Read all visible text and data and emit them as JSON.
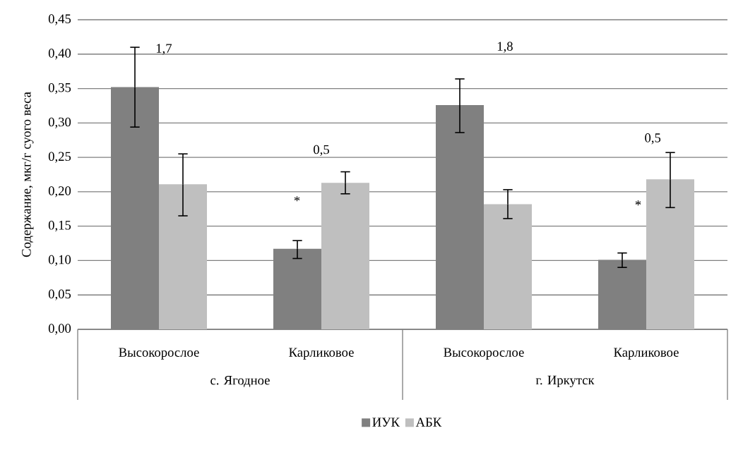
{
  "chart_data": {
    "type": "bar",
    "ylabel": "Содержание, мкг/г суого  веса",
    "categories": [
      "Высокорослое",
      "Карликовое",
      "Высокорослое",
      "Карликовое"
    ],
    "series": [
      {
        "name": "ИУК",
        "color": "#808080",
        "values": [
          0.352,
          0.117,
          0.326,
          0.101
        ],
        "errors": [
          [
            0.294,
            0.41
          ],
          [
            0.103,
            0.129
          ],
          [
            0.286,
            0.364
          ],
          [
            0.09,
            0.111
          ]
        ]
      },
      {
        "name": "АБК",
        "color": "#bfbfbf",
        "values": [
          0.211,
          0.213,
          0.182,
          0.218
        ],
        "errors": [
          [
            0.165,
            0.255
          ],
          [
            0.197,
            0.229
          ],
          [
            0.161,
            0.203
          ],
          [
            0.177,
            0.257
          ]
        ]
      }
    ],
    "ylim": [
      0,
      0.45
    ],
    "yticks": [
      {
        "value": 0,
        "label": "0,00"
      },
      {
        "value": 0.05,
        "label": "0,05"
      },
      {
        "value": 0.1,
        "label": "0,10"
      },
      {
        "value": 0.15,
        "label": "0,15"
      },
      {
        "value": 0.2,
        "label": "0,20"
      },
      {
        "value": 0.25,
        "label": "0,25"
      },
      {
        "value": 0.3,
        "label": "0,30"
      },
      {
        "value": 0.35,
        "label": "0,35"
      },
      {
        "value": 0.4,
        "label": "0,40"
      },
      {
        "value": 0.45,
        "label": "0,45"
      }
    ],
    "grid": "y",
    "legend": "bottom",
    "annotations": [
      "1,7",
      "0,5",
      "1,8",
      "0,5",
      "*",
      "*",
      "с. Ягодное",
      "г. Иркутск"
    ]
  }
}
